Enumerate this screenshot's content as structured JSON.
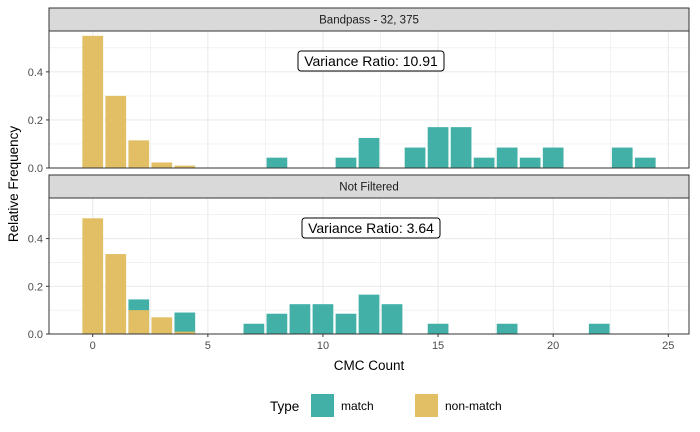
{
  "chart_data": {
    "type": "bar",
    "xlabel": "CMC Count",
    "ylabel": "Relative Frequency",
    "xlim": [
      -1.9,
      25.9
    ],
    "ylim": [
      0,
      0.57
    ],
    "x_ticks": [
      0,
      5,
      10,
      15,
      20,
      25
    ],
    "y_ticks": [
      0.0,
      0.2,
      0.4
    ],
    "y_tick_labels": [
      "0.0",
      "0.2",
      "0.4"
    ],
    "grid": true,
    "legend_position": "bottom",
    "legend": {
      "title": "Type",
      "entries": [
        {
          "label": "match",
          "color": "#42b0a6"
        },
        {
          "label": "non-match",
          "color": "#e2bf64"
        }
      ]
    },
    "panels": [
      {
        "strip": "Bandpass - 32, 375",
        "annotation": "Variance Ratio: 10.91",
        "series": [
          {
            "type": "match",
            "color": "#42b0a6",
            "x": [
              8,
              11,
              12,
              14,
              15,
              16,
              17,
              18,
              19,
              20,
              23,
              24
            ],
            "values": [
              0.043,
              0.043,
              0.125,
              0.085,
              0.17,
              0.17,
              0.043,
              0.085,
              0.043,
              0.085,
              0.085,
              0.043
            ]
          },
          {
            "type": "non-match",
            "color": "#e2bf64",
            "x": [
              0,
              1,
              2,
              3,
              4
            ],
            "values": [
              0.55,
              0.3,
              0.115,
              0.023,
              0.01
            ]
          }
        ]
      },
      {
        "strip": "Not Filtered",
        "annotation": "Variance Ratio: 3.64",
        "series": [
          {
            "type": "match",
            "color": "#42b0a6",
            "x": [
              2,
              4,
              7,
              8,
              9,
              10,
              11,
              12,
              13,
              15,
              18,
              22
            ],
            "values": [
              0.145,
              0.09,
              0.043,
              0.085,
              0.125,
              0.125,
              0.085,
              0.165,
              0.125,
              0.043,
              0.043,
              0.043
            ]
          },
          {
            "type": "non-match",
            "color": "#e2bf64",
            "x": [
              0,
              1,
              2,
              3,
              4
            ],
            "values": [
              0.485,
              0.335,
              0.1,
              0.07,
              0.01
            ]
          }
        ]
      }
    ]
  }
}
